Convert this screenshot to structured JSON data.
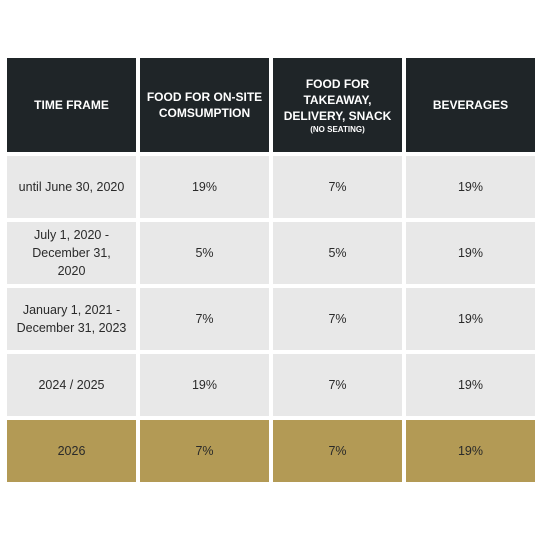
{
  "table": {
    "headers": [
      {
        "label": "TIME FRAME",
        "note": ""
      },
      {
        "label": "FOOD FOR ON-SITE COMSUMPTION",
        "note": ""
      },
      {
        "label": "FOOD FOR TAKEAWAY, DELIVERY, SNACK",
        "note": "(NO SEATING)"
      },
      {
        "label": "BEVERAGES",
        "note": ""
      }
    ],
    "rows": [
      {
        "time_frame": "until June 30, 2020",
        "onsite": "19%",
        "takeaway": "7%",
        "beverages": "19%"
      },
      {
        "time_frame": "July 1, 2020 - December 31, 2020",
        "onsite": "5%",
        "takeaway": "5%",
        "beverages": "19%"
      },
      {
        "time_frame": "January 1, 2021 - December 31, 2023",
        "onsite": "7%",
        "takeaway": "7%",
        "beverages": "19%"
      },
      {
        "time_frame": "2024 / 2025",
        "onsite": "19%",
        "takeaway": "7%",
        "beverages": "19%"
      },
      {
        "time_frame": "2026",
        "onsite": "7%",
        "takeaway": "7%",
        "beverages": "19%"
      }
    ]
  },
  "colors": {
    "header_background": "#1f2528",
    "row_background": "#e8e8e8",
    "highlight_row_background": "#b39a55"
  }
}
